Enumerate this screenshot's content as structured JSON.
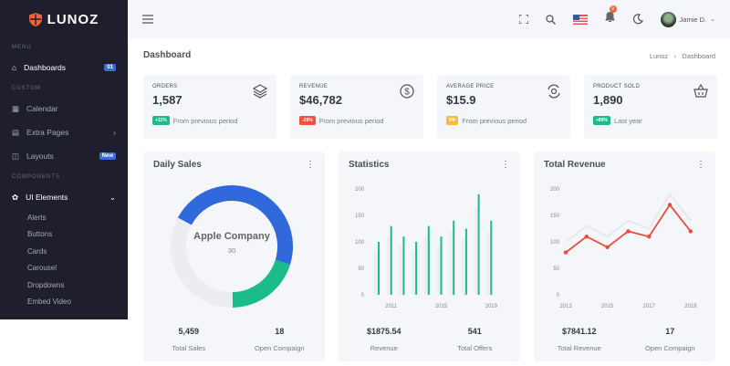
{
  "brand": {
    "name": "LUNOZ",
    "accent": "#f0643b"
  },
  "sidebar": {
    "sections": [
      "MENU",
      "CUSTOM",
      "COMPONENTS"
    ],
    "items": [
      {
        "label": "Dashboards",
        "icon": "home-icon",
        "badge": "01",
        "badge_color": "#3b6bd6"
      },
      {
        "label": "Calendar",
        "icon": "calendar-icon"
      },
      {
        "label": "Extra Pages",
        "icon": "file-icon",
        "chevron": "right"
      },
      {
        "label": "Layouts",
        "icon": "layout-icon",
        "badge": "New",
        "badge_color": "#3b6bd6"
      },
      {
        "label": "UI Elements",
        "icon": "cookie-icon",
        "chevron": "down"
      }
    ],
    "subitems": [
      "Alerts",
      "Buttons",
      "Cards",
      "Carousel",
      "Dropdowns",
      "Embed Video"
    ]
  },
  "topbar": {
    "notification_count": "9",
    "user": "Jamie D."
  },
  "page": {
    "title": "Dashboard",
    "breadcrumb": [
      "Lunoz",
      "Dashboard"
    ]
  },
  "stats": [
    {
      "label": "ORDERS",
      "value": "1,587",
      "change": "+11%",
      "change_color": "#1cbb8c",
      "note": "From previous period",
      "icon": "layers-icon"
    },
    {
      "label": "REVENUE",
      "value": "$46,782",
      "change": "-29%",
      "change_color": "#f1523e",
      "note": "From previous period",
      "icon": "dollar-icon"
    },
    {
      "label": "AVERAGE PRICE",
      "value": "$15.9",
      "change": "0%",
      "change_color": "#f4bc3c",
      "note": "From previous period",
      "icon": "refresh-icon"
    },
    {
      "label": "PRODUCT SOLD",
      "value": "1,890",
      "change": "+89%",
      "change_color": "#1cbb8c",
      "note": "Last year",
      "icon": "basket-icon"
    }
  ],
  "cards": [
    {
      "title": "Daily Sales",
      "footer": [
        {
          "value": "5,459",
          "label": "Total Sales"
        },
        {
          "value": "18",
          "label": "Open Compaign"
        }
      ]
    },
    {
      "title": "Statistics",
      "footer": [
        {
          "value": "$1875.54",
          "label": "Revenue"
        },
        {
          "value": "541",
          "label": "Total Offers"
        }
      ]
    },
    {
      "title": "Total Revenue",
      "footer": [
        {
          "value": "$7841.12",
          "label": "Total Revenue"
        },
        {
          "value": "17",
          "label": "Open Compaign"
        }
      ]
    }
  ],
  "chart_data": [
    {
      "type": "pie",
      "donut": true,
      "center_label": "Apple Company",
      "center_value": "30",
      "values": [
        47,
        20,
        33
      ],
      "colors": [
        "#3069dc",
        "#1cbb8c",
        "#ebedf0"
      ]
    },
    {
      "type": "bar",
      "x": [
        2010,
        2011,
        2012,
        2013,
        2014,
        2015,
        2016,
        2017,
        2018,
        2019
      ],
      "xticks": [
        "2011",
        "2015",
        "2019"
      ],
      "values": [
        100,
        130,
        110,
        100,
        130,
        110,
        140,
        125,
        190,
        140
      ],
      "ylim": [
        0,
        200
      ],
      "yticks": [
        "0",
        "50",
        "100",
        "150",
        "200"
      ],
      "color": "#1cbb8c"
    },
    {
      "type": "line",
      "x": [
        2013,
        2014,
        2015,
        2016,
        2017,
        2018,
        2019
      ],
      "xticks": [
        "2013",
        "2015",
        "2017",
        "2019"
      ],
      "series": [
        {
          "values": [
            80,
            110,
            90,
            120,
            110,
            170,
            120
          ],
          "color": "#e74c3c"
        },
        {
          "values": [
            100,
            130,
            110,
            140,
            125,
            190,
            140
          ],
          "color": "#e6e8ec"
        }
      ],
      "ylim": [
        0,
        200
      ],
      "yticks": [
        "0",
        "50",
        "100",
        "150",
        "200"
      ]
    }
  ]
}
